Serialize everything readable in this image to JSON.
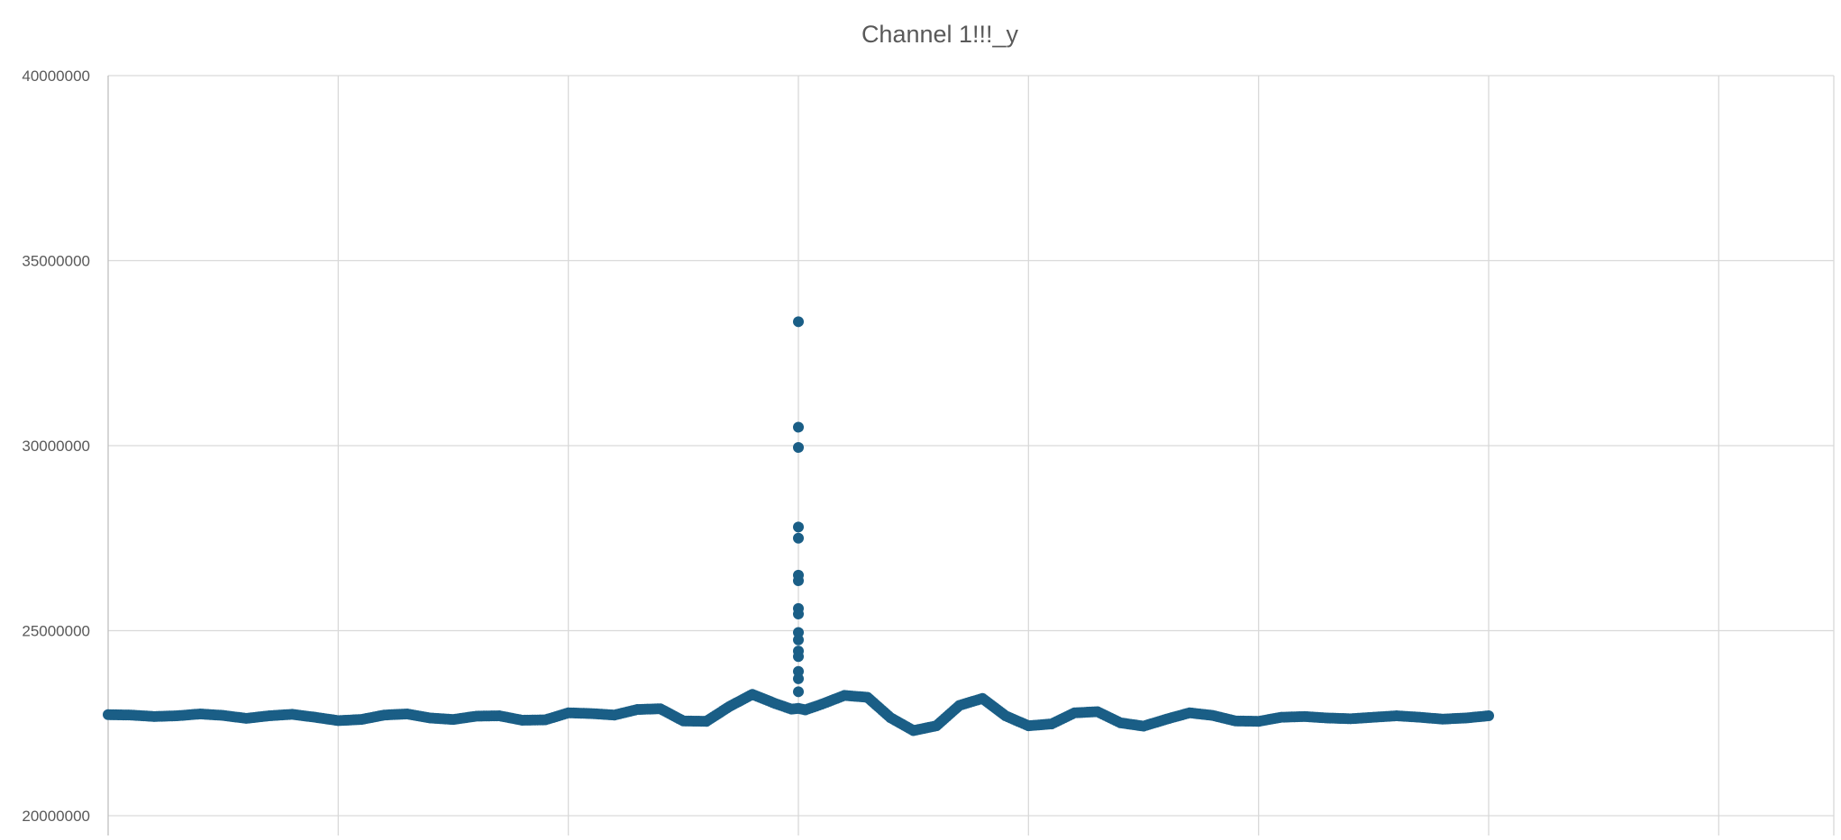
{
  "chart_data": {
    "type": "scatter",
    "title": "Channel 1!!!_y",
    "xlabel": "",
    "ylabel": "",
    "xlim": [
      0,
      7.5
    ],
    "ylim": [
      20000000,
      40000000
    ],
    "y_ticks": [
      20000000,
      25000000,
      30000000,
      35000000,
      40000000
    ],
    "y_tick_labels": [
      "20000000",
      "25000000",
      "30000000",
      "35000000",
      "40000000"
    ],
    "x_gridlines": [
      0,
      1,
      2,
      3,
      4,
      5,
      6,
      7
    ],
    "grid": true,
    "legend": "none",
    "marker_color": "#1a5e86",
    "series": [
      {
        "x": [
          0.0,
          0.1,
          0.2,
          0.3,
          0.4,
          0.5,
          0.6,
          0.7,
          0.8,
          0.9,
          1.0,
          1.1,
          1.2,
          1.3,
          1.4,
          1.5,
          1.6,
          1.7,
          1.8,
          1.9,
          2.0,
          2.1,
          2.2,
          2.3,
          2.4,
          2.5,
          2.6,
          2.7,
          2.8,
          2.9,
          2.97,
          3.0,
          3.03,
          3.1,
          3.2,
          3.3,
          3.4,
          3.5,
          3.6,
          3.7,
          3.8,
          3.9,
          4.0,
          4.1,
          4.2,
          4.3,
          4.4,
          4.5,
          4.6,
          4.7,
          4.8,
          4.9,
          5.0,
          5.1,
          5.2,
          5.3,
          5.4,
          5.5,
          5.6,
          5.7,
          5.8,
          5.9,
          6.0
        ],
        "y": [
          22730000,
          22720000,
          22680000,
          22700000,
          22750000,
          22710000,
          22630000,
          22700000,
          22740000,
          22660000,
          22570000,
          22600000,
          22720000,
          22750000,
          22640000,
          22600000,
          22690000,
          22700000,
          22580000,
          22590000,
          22780000,
          22760000,
          22720000,
          22870000,
          22890000,
          22560000,
          22550000,
          22950000,
          23280000,
          23030000,
          22880000,
          22900000,
          22860000,
          23010000,
          23250000,
          23200000,
          22650000,
          22300000,
          22430000,
          22980000,
          23170000,
          22700000,
          22430000,
          22480000,
          22780000,
          22810000,
          22510000,
          22420000,
          22610000,
          22780000,
          22710000,
          22560000,
          22550000,
          22660000,
          22680000,
          22640000,
          22620000,
          22660000,
          22700000,
          22660000,
          22610000,
          22640000,
          22700000
        ]
      },
      {
        "x": [
          3.0,
          3.0,
          3.0,
          3.0,
          3.0,
          3.0,
          3.0,
          3.0,
          3.0,
          3.0,
          3.0,
          3.0,
          3.0,
          3.0,
          3.0,
          3.0
        ],
        "y": [
          33350000,
          30500000,
          29950000,
          27800000,
          27500000,
          26500000,
          26350000,
          25600000,
          25450000,
          24950000,
          24750000,
          24450000,
          24300000,
          23900000,
          23700000,
          23350000
        ]
      }
    ]
  }
}
